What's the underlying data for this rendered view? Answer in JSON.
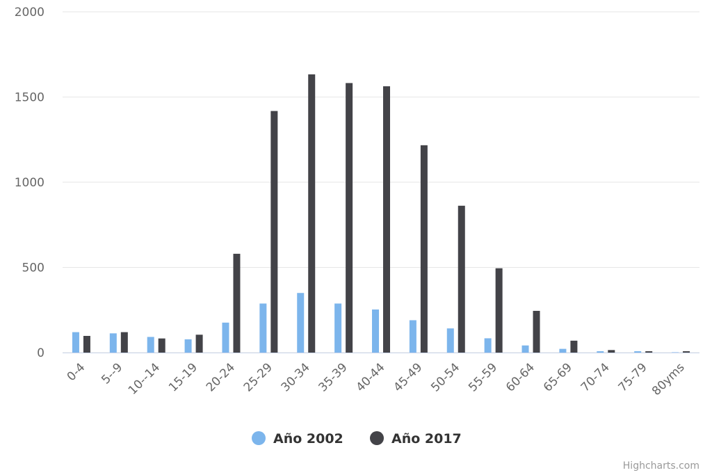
{
  "chart_data": {
    "type": "bar",
    "title": "",
    "xlabel": "",
    "ylabel": "",
    "ylim": [
      0,
      2000
    ],
    "yticks": [
      0,
      500,
      1000,
      1500,
      2000
    ],
    "grid": true,
    "legend_position": "bottom-center",
    "categories": [
      "0-4",
      "5--9",
      "10--14",
      "15-19",
      "20-24",
      "25-29",
      "30-34",
      "35-39",
      "40-44",
      "45-49",
      "50-54",
      "55-59",
      "60-64",
      "65-69",
      "70-74",
      "75-79",
      "80yms"
    ],
    "series": [
      {
        "name": "Año 2002",
        "color": "#7cb5ec",
        "values": [
          120,
          113,
          92,
          78,
          176,
          288,
          350,
          288,
          253,
          190,
          142,
          84,
          42,
          22,
          8,
          8,
          2
        ]
      },
      {
        "name": "Año 2017",
        "color": "#434348",
        "values": [
          98,
          120,
          83,
          105,
          580,
          1418,
          1633,
          1582,
          1563,
          1217,
          862,
          495,
          245,
          70,
          15,
          8,
          8
        ]
      }
    ]
  },
  "credits": "Highcharts.com"
}
